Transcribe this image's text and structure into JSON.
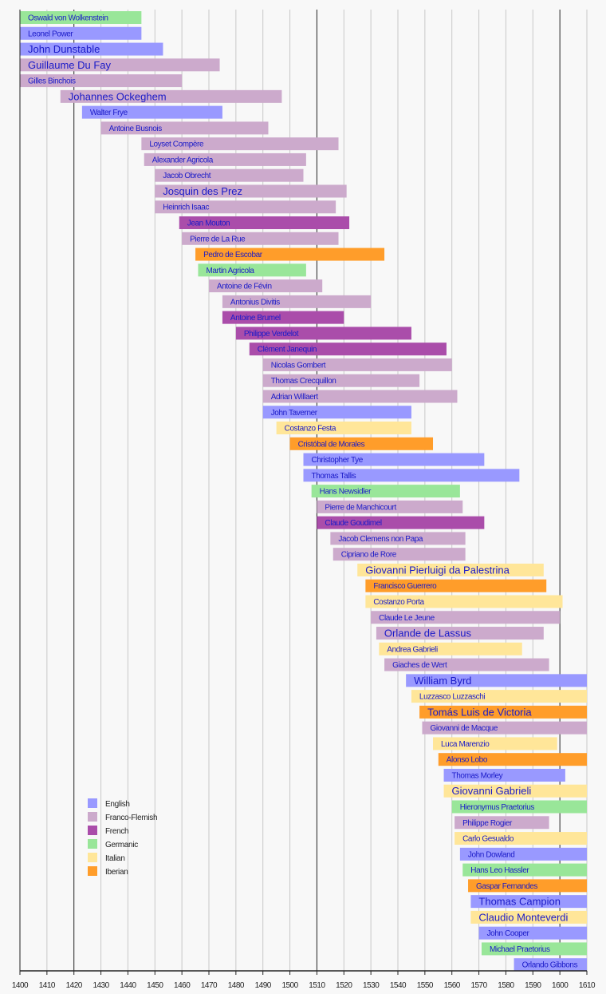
{
  "chart_data": {
    "type": "timeline",
    "title": "",
    "xlabel": "",
    "ylabel": "",
    "xlim": [
      1400,
      1610
    ],
    "xticks": [
      1400,
      1410,
      1420,
      1430,
      1440,
      1450,
      1460,
      1470,
      1480,
      1490,
      1500,
      1510,
      1520,
      1530,
      1540,
      1550,
      1560,
      1570,
      1580,
      1590,
      1600,
      1610
    ],
    "major_gridlines": [
      1420,
      1510,
      1600
    ],
    "grid": true,
    "legend_placement": "bottom-left",
    "categories": [
      {
        "key": "E",
        "name": "English",
        "color": "#9999ff"
      },
      {
        "key": "FF",
        "name": "Franco-Flemish",
        "color": "#ccaacc"
      },
      {
        "key": "F",
        "name": "French",
        "color": "#aa4daa"
      },
      {
        "key": "G",
        "name": "Germanic",
        "color": "#99e699"
      },
      {
        "key": "I",
        "name": "Italian",
        "color": "#ffe699"
      },
      {
        "key": "Ib",
        "name": "Iberian",
        "color": "#ff9d2a"
      }
    ],
    "label_color": "#1a1ac8",
    "composers": [
      {
        "name": "Oswald von Wolkenstein",
        "start": 1400,
        "end": 1445,
        "group": "G"
      },
      {
        "name": "Leonel Power",
        "start": 1400,
        "end": 1445,
        "group": "E"
      },
      {
        "name": "John Dunstable",
        "start": 1400,
        "end": 1453,
        "group": "E",
        "major": true
      },
      {
        "name": "Guillaume Du Fay",
        "start": 1400,
        "end": 1474,
        "group": "FF",
        "major": true
      },
      {
        "name": "Gilles Binchois",
        "start": 1400,
        "end": 1460,
        "group": "FF"
      },
      {
        "name": "Johannes Ockeghem",
        "start": 1415,
        "end": 1497,
        "group": "FF",
        "major": true
      },
      {
        "name": "Walter Frye",
        "start": 1423,
        "end": 1475,
        "group": "E"
      },
      {
        "name": "Antoine Busnois",
        "start": 1430,
        "end": 1492,
        "group": "FF"
      },
      {
        "name": "Loyset Compère",
        "start": 1445,
        "end": 1518,
        "group": "FF"
      },
      {
        "name": "Alexander Agricola",
        "start": 1446,
        "end": 1506,
        "group": "FF"
      },
      {
        "name": "Jacob Obrecht",
        "start": 1450,
        "end": 1505,
        "group": "FF"
      },
      {
        "name": "Josquin des Prez",
        "start": 1450,
        "end": 1521,
        "group": "FF",
        "major": true
      },
      {
        "name": "Heinrich Isaac",
        "start": 1450,
        "end": 1517,
        "group": "FF"
      },
      {
        "name": "Jean Mouton",
        "start": 1459,
        "end": 1522,
        "group": "F"
      },
      {
        "name": "Pierre de La Rue",
        "start": 1460,
        "end": 1518,
        "group": "FF"
      },
      {
        "name": "Pedro de Escobar",
        "start": 1465,
        "end": 1535,
        "group": "Ib"
      },
      {
        "name": "Martin Agricola",
        "start": 1466,
        "end": 1506,
        "group": "G"
      },
      {
        "name": "Antoine de Févin",
        "start": 1470,
        "end": 1512,
        "group": "FF"
      },
      {
        "name": "Antonius Divitis",
        "start": 1475,
        "end": 1530,
        "group": "FF"
      },
      {
        "name": "Antoine Brumel",
        "start": 1475,
        "end": 1520,
        "group": "F"
      },
      {
        "name": "Philippe Verdelot",
        "start": 1480,
        "end": 1545,
        "group": "F"
      },
      {
        "name": "Clément Janequin",
        "start": 1485,
        "end": 1558,
        "group": "F"
      },
      {
        "name": "Nicolas Gombert",
        "start": 1490,
        "end": 1560,
        "group": "FF"
      },
      {
        "name": "Thomas Crecquillon",
        "start": 1490,
        "end": 1548,
        "group": "FF"
      },
      {
        "name": "Adrian Willaert",
        "start": 1490,
        "end": 1562,
        "group": "FF"
      },
      {
        "name": "John Taverner",
        "start": 1490,
        "end": 1545,
        "group": "E"
      },
      {
        "name": "Costanzo Festa",
        "start": 1495,
        "end": 1545,
        "group": "I"
      },
      {
        "name": "Cristóbal de Morales",
        "start": 1500,
        "end": 1553,
        "group": "Ib"
      },
      {
        "name": "Christopher Tye",
        "start": 1505,
        "end": 1572,
        "group": "E"
      },
      {
        "name": "Thomas Tallis",
        "start": 1505,
        "end": 1585,
        "group": "E"
      },
      {
        "name": "Hans Newsidler",
        "start": 1508,
        "end": 1563,
        "group": "G"
      },
      {
        "name": "Pierre de Manchicourt",
        "start": 1510,
        "end": 1564,
        "group": "FF"
      },
      {
        "name": "Claude Goudimel",
        "start": 1510,
        "end": 1572,
        "group": "F"
      },
      {
        "name": "Jacob Clemens non Papa",
        "start": 1515,
        "end": 1565,
        "group": "FF"
      },
      {
        "name": "Cipriano de Rore",
        "start": 1516,
        "end": 1565,
        "group": "FF"
      },
      {
        "name": "Giovanni Pierluigi da Palestrina",
        "start": 1525,
        "end": 1594,
        "group": "I",
        "major": true
      },
      {
        "name": "Francisco Guerrero",
        "start": 1528,
        "end": 1595,
        "group": "Ib"
      },
      {
        "name": "Costanzo Porta",
        "start": 1528,
        "end": 1601,
        "group": "I"
      },
      {
        "name": "Claude Le Jeune",
        "start": 1530,
        "end": 1600,
        "group": "FF"
      },
      {
        "name": "Orlande de Lassus",
        "start": 1532,
        "end": 1594,
        "group": "FF",
        "major": true
      },
      {
        "name": "Andrea Gabrieli",
        "start": 1533,
        "end": 1586,
        "group": "I"
      },
      {
        "name": "Giaches de Wert",
        "start": 1535,
        "end": 1596,
        "group": "FF"
      },
      {
        "name": "William Byrd",
        "start": 1543,
        "end": 1610,
        "group": "E",
        "major": true
      },
      {
        "name": "Luzzasco Luzzaschi",
        "start": 1545,
        "end": 1610,
        "group": "I"
      },
      {
        "name": "Tomás Luis de Victoria",
        "start": 1548,
        "end": 1610,
        "group": "Ib",
        "major": true
      },
      {
        "name": "Giovanni de Macque",
        "start": 1549,
        "end": 1610,
        "group": "FF"
      },
      {
        "name": "Luca Marenzio",
        "start": 1553,
        "end": 1599,
        "group": "I"
      },
      {
        "name": "Alonso Lobo",
        "start": 1555,
        "end": 1610,
        "group": "Ib"
      },
      {
        "name": "Thomas Morley",
        "start": 1557,
        "end": 1602,
        "group": "E"
      },
      {
        "name": "Giovanni Gabrieli",
        "start": 1557,
        "end": 1610,
        "group": "I",
        "major": true
      },
      {
        "name": "Hieronymus Praetorius",
        "start": 1560,
        "end": 1610,
        "group": "G"
      },
      {
        "name": "Philippe Rogier",
        "start": 1561,
        "end": 1596,
        "group": "FF"
      },
      {
        "name": "Carlo Gesualdo",
        "start": 1561,
        "end": 1610,
        "group": "I"
      },
      {
        "name": "John Dowland",
        "start": 1563,
        "end": 1610,
        "group": "E"
      },
      {
        "name": "Hans Leo Hassler",
        "start": 1564,
        "end": 1610,
        "group": "G"
      },
      {
        "name": "Gaspar Fernandes",
        "start": 1566,
        "end": 1610,
        "group": "Ib"
      },
      {
        "name": "Thomas Campion",
        "start": 1567,
        "end": 1610,
        "group": "E",
        "major": true
      },
      {
        "name": "Claudio Monteverdi",
        "start": 1567,
        "end": 1610,
        "group": "I",
        "major": true
      },
      {
        "name": "John Cooper",
        "start": 1570,
        "end": 1610,
        "group": "E"
      },
      {
        "name": "Michael Praetorius",
        "start": 1571,
        "end": 1610,
        "group": "G"
      },
      {
        "name": "Orlando Gibbons",
        "start": 1583,
        "end": 1610,
        "group": "E"
      }
    ]
  }
}
